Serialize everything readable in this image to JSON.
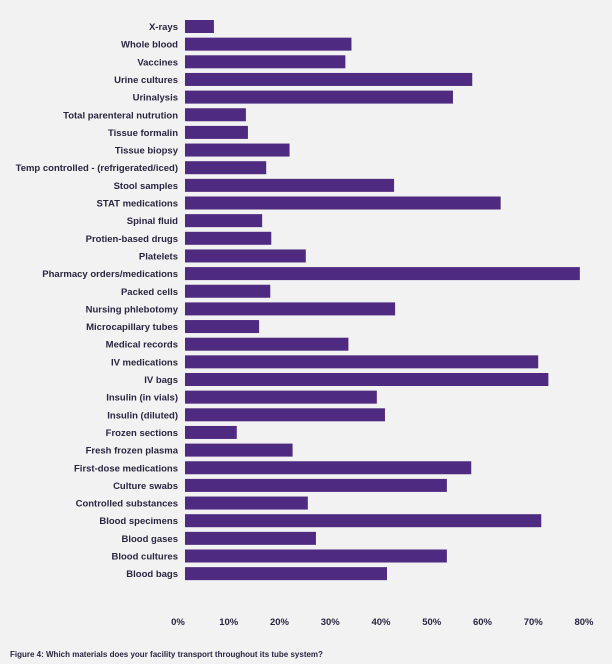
{
  "chart_data": {
    "type": "bar",
    "orientation": "horizontal",
    "categories": [
      "X-rays",
      "Whole blood",
      "Vaccines",
      "Urine cultures",
      "Urinalysis",
      "Total parenteral nutrution",
      "Tissue formalin",
      "Tissue biopsy",
      "Temp controlled - (refrigerated/iced)",
      "Stool samples",
      "STAT medications",
      "Spinal fluid",
      "Protien-based drugs",
      "Platelets",
      "Pharmacy orders/medications",
      "Packed cells",
      "Nursing phlebotomy",
      "Microcapillary tubes",
      "Medical records",
      "IV medications",
      "IV bags",
      "Insulin (in vials)",
      "Insulin (diluted)",
      "Frozen sections",
      "Fresh frozen plasma",
      "First-dose medications",
      "Culture swabs",
      "Controlled substances",
      "Blood specimens",
      "Blood gases",
      "Blood cultures",
      "Blood bags"
    ],
    "values": [
      5.7,
      32.8,
      31.6,
      56.6,
      52.8,
      12.0,
      12.4,
      20.6,
      16.0,
      41.2,
      62.2,
      15.2,
      17.0,
      23.8,
      77.8,
      16.8,
      41.4,
      14.6,
      32.2,
      69.6,
      71.6,
      37.8,
      39.4,
      10.2,
      21.2,
      56.4,
      51.6,
      24.2,
      70.2,
      25.8,
      51.6,
      39.8
    ],
    "xlim": [
      0,
      80
    ],
    "xticks": [
      "0%",
      "10%",
      "20%",
      "30%",
      "40%",
      "50%",
      "60%",
      "70%",
      "80%"
    ],
    "color": "#4e2a80",
    "grid": false
  },
  "caption": "Figure 4: Which materials does your facility transport throughout its tube system?"
}
